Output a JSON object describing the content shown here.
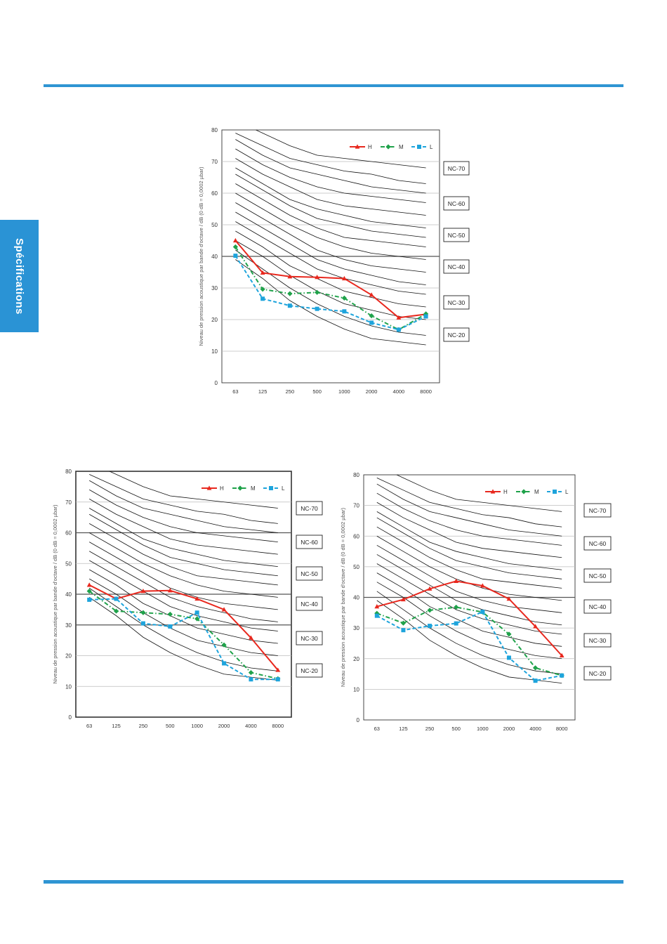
{
  "page": {
    "side_tab": "Spécifications",
    "colors": {
      "accent": "#2f95d3",
      "H": "#e8281e",
      "M": "#1fa24a",
      "L": "#1ea4dc",
      "curve": "#111111"
    }
  },
  "chart_data": [
    {
      "type": "line",
      "ylabel": "Niveau de pression acoustique par bande d'octave / dB (0 dB = 0,0002 µbar)",
      "categories": [
        "63",
        "125",
        "250",
        "500",
        "1000",
        "2000",
        "4000",
        "8000"
      ],
      "ylim": [
        0,
        80
      ],
      "yticks": [
        "0",
        "10",
        "20",
        "30",
        "40",
        "50",
        "60",
        "70",
        "80"
      ],
      "legend_position": "top-right",
      "grid": true,
      "series": [
        {
          "name": "H",
          "values": [
            45,
            34.8,
            33.6,
            33.4,
            33,
            27.8,
            20.6,
            21.7
          ]
        },
        {
          "name": "M",
          "values": [
            43,
            29.6,
            28.2,
            28.6,
            26.8,
            21.2,
            16.8,
            21.8
          ]
        },
        {
          "name": "L",
          "values": [
            40.2,
            26.6,
            24.4,
            23.4,
            22.6,
            19,
            16.8,
            21
          ]
        }
      ],
      "nc_labels": [
        "NC-70",
        "NC-60",
        "NC-50",
        "NC-40",
        "NC-30",
        "NC-20"
      ]
    },
    {
      "type": "line",
      "ylabel": "Niveau de pression acoustique par bande d'octave / dB (0 dB = 0,0002 µbar)",
      "categories": [
        "63",
        "125",
        "250",
        "500",
        "1000",
        "2000",
        "4000",
        "8000"
      ],
      "ylim": [
        0,
        80
      ],
      "yticks": [
        "0",
        "10",
        "20",
        "30",
        "40",
        "50",
        "60",
        "70",
        "80"
      ],
      "legend_position": "top-right",
      "grid": true,
      "series": [
        {
          "name": "H",
          "values": [
            43,
            38.5,
            41,
            41.2,
            38.5,
            35,
            25.8,
            15.3
          ]
        },
        {
          "name": "M",
          "values": [
            41,
            34.5,
            34,
            33.5,
            32,
            23.5,
            14.5,
            12.5
          ]
        },
        {
          "name": "L",
          "values": [
            38.2,
            38.5,
            30.5,
            29.5,
            34,
            17.5,
            12.3,
            12.3
          ]
        }
      ],
      "nc_labels": [
        "NC-70",
        "NC-60",
        "NC-50",
        "NC-40",
        "NC-30",
        "NC-20"
      ]
    },
    {
      "type": "line",
      "ylabel": "Niveau de pression acoustique par bande d'octave / dB (0 dB = 0,0002 µbar)",
      "categories": [
        "63",
        "125",
        "250",
        "500",
        "1000",
        "2000",
        "4000",
        "8000"
      ],
      "ylim": [
        0,
        80
      ],
      "yticks": [
        "0",
        "10",
        "20",
        "30",
        "40",
        "50",
        "60",
        "70",
        "80"
      ],
      "legend_position": "top-right",
      "grid": true,
      "series": [
        {
          "name": "H",
          "values": [
            37,
            39.3,
            42.8,
            45.3,
            43.8,
            39.5,
            30.5,
            21
          ]
        },
        {
          "name": "M",
          "values": [
            34.8,
            31.6,
            35.8,
            36.8,
            35.2,
            28,
            17,
            14.5
          ]
        },
        {
          "name": "L",
          "values": [
            34,
            29.3,
            30.7,
            31.5,
            35.3,
            20.3,
            12.8,
            14.5
          ]
        }
      ],
      "nc_labels": [
        "NC-70",
        "NC-60",
        "NC-50",
        "NC-40",
        "NC-30",
        "NC-20"
      ]
    }
  ]
}
